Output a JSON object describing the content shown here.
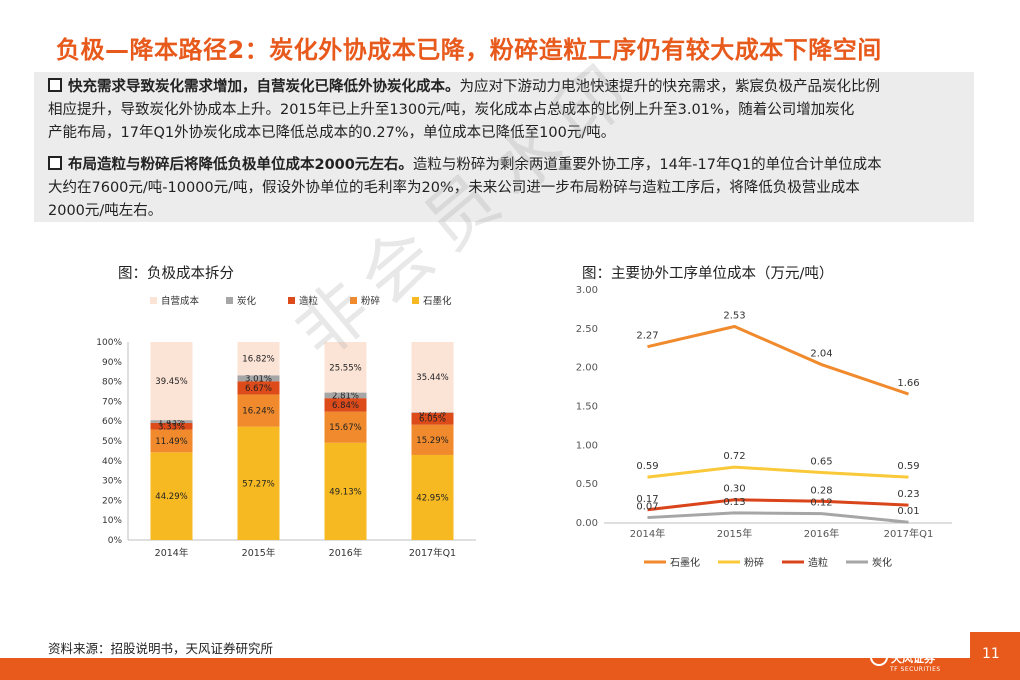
{
  "title": "负极—降本路径2：炭化外协成本已降，粉碎造粒工序仍有较大成本下降空间",
  "bullets": [
    {
      "head": "快充需求导致炭化需求增加，自营炭化已降低外协炭化成本。",
      "line1": "为应对下游动力电池快速提升的快充需求，紫宸负极产品炭化比例",
      "line2": "相应提升，导致炭化外协成本上升。2015年已上升至1300元/吨，炭化成本占总成本的比例上升至3.01%，随着公司增加炭化",
      "line3": "产能布局，17年Q1外协炭化成本已降低总成本的0.27%，单位成本已降低至100元/吨。"
    },
    {
      "head": "布局造粒与粉碎后将降低负极单位成本2000元左右。",
      "line1": "造粒与粉碎为剩余两道重要外协工序，14年-17年Q1的单位合计单位成本",
      "line2": "大约在7600元/吨-10000元/吨，假设外协单位的毛利率为20%，未来公司进一步布局粉碎与造粒工序后，将降低负极营业成本",
      "line3": "2000元/吨左右。"
    }
  ],
  "watermark": "非会员水印",
  "footer": {
    "source": "资料来源：招股说明书，天风证券研究所",
    "logo_text": "天风证券",
    "logo_sub": "TF SECURITIES",
    "page": "11"
  },
  "chart_data": [
    {
      "type": "bar",
      "stacked": true,
      "title": "图：负极成本拆分",
      "categories": [
        "2014年",
        "2015年",
        "2016年",
        "2017年Q1"
      ],
      "ylim": [
        0,
        100
      ],
      "yticks": [
        "0%",
        "10%",
        "20%",
        "30%",
        "40%",
        "50%",
        "60%",
        "70%",
        "80%",
        "90%",
        "100%"
      ],
      "series": [
        {
          "name": "石墨化",
          "color": "#f6b922",
          "values": [
            44.29,
            57.27,
            49.13,
            42.95
          ],
          "labels": [
            "44.29%",
            "57.27%",
            "49.13%",
            "42.95%"
          ]
        },
        {
          "name": "粉碎",
          "color": "#f08a2c",
          "values": [
            11.49,
            16.24,
            15.67,
            15.29
          ],
          "labels": [
            "11.49%",
            "16.24%",
            "15.67%",
            "15.29%"
          ]
        },
        {
          "name": "造粒",
          "color": "#dd4b1a",
          "values": [
            3.33,
            6.67,
            6.84,
            6.05
          ],
          "labels": [
            "3.33%",
            "6.67%",
            "6.84%",
            "6.05%"
          ]
        },
        {
          "name": "炭化",
          "color": "#a6a6a6",
          "values": [
            1.43,
            3.01,
            2.81,
            0.27
          ],
          "labels": [
            "1.43%",
            "3.01%",
            "2.81%",
            "0.27%"
          ]
        },
        {
          "name": "自营成本",
          "color": "#fbe3d6",
          "values": [
            39.45,
            16.82,
            25.55,
            35.44
          ],
          "labels": [
            "39.45%",
            "16.82%",
            "25.55%",
            "35.44%"
          ]
        }
      ],
      "legend_order": [
        "自营成本",
        "炭化",
        "造粒",
        "粉碎",
        "石墨化"
      ],
      "legend": "top"
    },
    {
      "type": "line",
      "title": "图：主要协外工序单位成本（万元/吨）",
      "categories": [
        "2014年",
        "2015年",
        "2016年",
        "2017年Q1"
      ],
      "ylim": [
        0,
        3
      ],
      "yticks": [
        "0.00",
        "0.50",
        "1.00",
        "1.50",
        "2.00",
        "2.50",
        "3.00"
      ],
      "series": [
        {
          "name": "石墨化",
          "color": "#f08a2c",
          "values": [
            2.27,
            2.53,
            2.04,
            1.66
          ],
          "labels": [
            "2.27",
            "2.53",
            "2.04",
            "1.66"
          ]
        },
        {
          "name": "粉碎",
          "color": "#f9c93a",
          "values": [
            0.59,
            0.72,
            0.65,
            0.59
          ],
          "labels": [
            "0.59",
            "0.72",
            "0.65",
            "0.59"
          ]
        },
        {
          "name": "造粒",
          "color": "#d9441a",
          "values": [
            0.17,
            0.3,
            0.28,
            0.23
          ],
          "labels": [
            "0.17",
            "0.30",
            "0.28",
            "0.23"
          ]
        },
        {
          "name": "炭化",
          "color": "#a6a6a6",
          "values": [
            0.07,
            0.13,
            0.12,
            0.01
          ],
          "labels": [
            "0.07",
            "0.13",
            "0.12",
            "0.01"
          ]
        }
      ],
      "legend": "bottom",
      "grid": false
    }
  ]
}
